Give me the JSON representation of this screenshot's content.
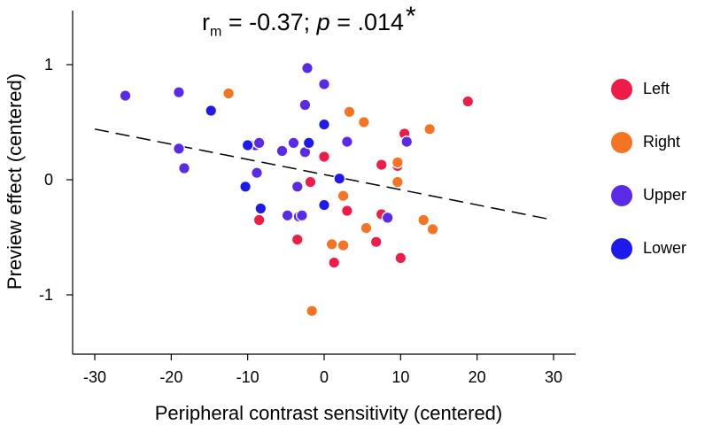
{
  "chart_data": {
    "type": "scatter",
    "title": {
      "r_prefix": "r",
      "r_sub": "m",
      "r_value": " = -0.37; ",
      "p_letter": "p",
      "p_value": " = .014",
      "star": "*"
    },
    "xlabel": "Peripheral contrast sensitivity (centered)",
    "ylabel": "Preview effect (centered)",
    "xlim": [
      -31,
      33
    ],
    "ylim": [
      -1.6,
      1.5
    ],
    "xticks": [
      -30,
      -20,
      -10,
      0,
      10,
      20,
      30
    ],
    "yticks": [
      -1,
      0,
      1
    ],
    "xtick_labels": [
      "-30",
      "-20",
      "-10",
      "0",
      "10",
      "20",
      "30"
    ],
    "ytick_labels": [
      "-1",
      "0",
      "1"
    ],
    "fit_line": {
      "style": "dashed",
      "x": [
        -30,
        30
      ],
      "y": [
        0.44,
        -0.35
      ]
    },
    "series": [
      {
        "name": "Left",
        "color": "#ee1d47",
        "points": [
          [
            -8.5,
            -0.35
          ],
          [
            -1.8,
            -0.02
          ],
          [
            -3.5,
            -0.52
          ],
          [
            0,
            0.2
          ],
          [
            3,
            -0.27
          ],
          [
            1.3,
            -0.72
          ],
          [
            6.8,
            -0.54
          ],
          [
            7.5,
            -0.3
          ],
          [
            7.5,
            0.13
          ],
          [
            9.6,
            0.12
          ],
          [
            10,
            -0.68
          ],
          [
            10.5,
            0.4
          ],
          [
            18.8,
            0.68
          ]
        ]
      },
      {
        "name": "Right",
        "color": "#f47424",
        "points": [
          [
            -12.5,
            0.75
          ],
          [
            -1.6,
            -1.14
          ],
          [
            1,
            -0.56
          ],
          [
            2.5,
            -0.14
          ],
          [
            2.5,
            -0.57
          ],
          [
            3.3,
            0.59
          ],
          [
            5.2,
            0.5
          ],
          [
            5.5,
            -0.42
          ],
          [
            9.6,
            0.15
          ],
          [
            9.6,
            -0.02
          ],
          [
            13,
            -0.35
          ],
          [
            13.8,
            0.44
          ],
          [
            14.2,
            -0.43
          ]
        ]
      },
      {
        "name": "Upper",
        "color": "#5a2ae6",
        "points": [
          [
            -26,
            0.73
          ],
          [
            -19,
            0.76
          ],
          [
            -19,
            0.27
          ],
          [
            -18.3,
            0.1
          ],
          [
            -9,
            0.3
          ],
          [
            -8.8,
            0.06
          ],
          [
            -8.5,
            0.32
          ],
          [
            -4,
            0.32
          ],
          [
            -3.5,
            -0.06
          ],
          [
            -3.3,
            -0.32
          ],
          [
            -2.5,
            0.65
          ],
          [
            -2.2,
            0.97
          ],
          [
            -5.5,
            0.25
          ],
          [
            -2.5,
            0.24
          ],
          [
            -4.8,
            -0.31
          ],
          [
            -2.9,
            -0.31
          ],
          [
            0,
            0.83
          ],
          [
            3,
            0.33
          ],
          [
            8.3,
            -0.33
          ],
          [
            10.8,
            0.33
          ]
        ]
      },
      {
        "name": "Lower",
        "color": "#1f1aec",
        "points": [
          [
            -14.8,
            0.6
          ],
          [
            -10.3,
            -0.06
          ],
          [
            -10,
            0.3
          ],
          [
            -8.3,
            -0.25
          ],
          [
            -2,
            0.32
          ],
          [
            0,
            0.48
          ],
          [
            0,
            -0.22
          ],
          [
            2,
            0.01
          ]
        ]
      }
    ],
    "legend": [
      {
        "label": "Left",
        "color": "#ee1d47"
      },
      {
        "label": "Right",
        "color": "#f47424"
      },
      {
        "label": "Upper",
        "color": "#5a2ae6"
      },
      {
        "label": "Lower",
        "color": "#1f1aec"
      }
    ]
  }
}
